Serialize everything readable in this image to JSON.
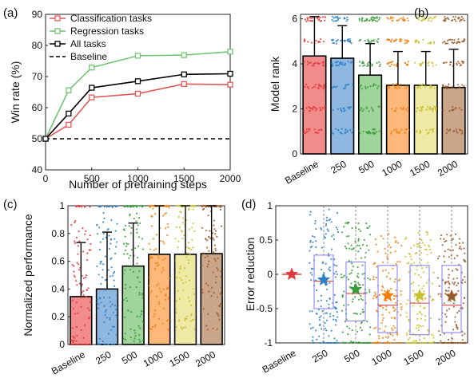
{
  "chart_data": [
    {
      "panel_label": "(a)",
      "type": "line",
      "xlabel": "Number of pretraining steps",
      "ylabel": "Win rate (%)",
      "xlim": [
        0,
        2000
      ],
      "ylim": [
        40,
        90
      ],
      "xticks": [
        0,
        500,
        1000,
        1500,
        2000
      ],
      "yticks": [
        40,
        50,
        60,
        70,
        80,
        90
      ],
      "grid": false,
      "legend_position": "top-left",
      "x": [
        0,
        250,
        500,
        1000,
        1500,
        2000
      ],
      "series": [
        {
          "name": "Classification tasks",
          "color": "#e05a5a",
          "values": [
            50,
            54.5,
            63.3,
            64.5,
            67.6,
            67.4
          ]
        },
        {
          "name": "Regression tasks",
          "color": "#74c476",
          "values": [
            50,
            65.6,
            72.9,
            76.7,
            76.9,
            78.0
          ]
        },
        {
          "name": "All tasks",
          "color": "#000000",
          "values": [
            50,
            58.1,
            66.4,
            68.5,
            70.7,
            70.9
          ]
        }
      ],
      "reference_line": {
        "name": "Baseline",
        "value": 50,
        "color": "#000000"
      }
    },
    {
      "panel_label": "(b)",
      "type": "bar",
      "xlabel": "",
      "ylabel": "Model rank",
      "ylim": [
        0,
        6.2
      ],
      "yticks": [
        0,
        2,
        4,
        6
      ],
      "categories": [
        "Baseline",
        "250",
        "500",
        "1000",
        "1500",
        "2000"
      ],
      "values": [
        4.35,
        4.25,
        3.5,
        3.05,
        3.05,
        2.95
      ],
      "errors": [
        1.75,
        1.45,
        1.4,
        1.5,
        1.5,
        1.7
      ],
      "discrete_levels": [
        1,
        2,
        3,
        4,
        5,
        6
      ],
      "colors": [
        "#f28b8b",
        "#8fb8e0",
        "#9fd49a",
        "#fdb87a",
        "#eeeaa6",
        "#c9a68a"
      ],
      "dot_colors": [
        "#e03a3a",
        "#2f7fc2",
        "#3a9a3a",
        "#f07f10",
        "#c8c030",
        "#9a5a2a"
      ]
    },
    {
      "panel_label": "(c)",
      "type": "bar",
      "xlabel": "",
      "ylabel": "Normalized performance",
      "ylim": [
        0,
        1
      ],
      "yticks": [
        0,
        0.2,
        0.4,
        0.6,
        0.8,
        1
      ],
      "categories": [
        "Baseline",
        "250",
        "500",
        "1000",
        "1500",
        "2000"
      ],
      "values": [
        0.345,
        0.4,
        0.565,
        0.65,
        0.65,
        0.655
      ],
      "errors": [
        0.39,
        0.41,
        0.31,
        0.35,
        0.35,
        0.345
      ],
      "colors": [
        "#f28b8b",
        "#8fb8e0",
        "#9fd49a",
        "#fdb87a",
        "#eeeaa6",
        "#c9a68a"
      ],
      "dot_colors": [
        "#e03a3a",
        "#2f7fc2",
        "#3a9a3a",
        "#f07f10",
        "#c8c030",
        "#9a5a2a"
      ]
    },
    {
      "panel_label": "(d)",
      "type": "box",
      "xlabel": "",
      "ylabel": "Error reduction",
      "ylim": [
        -1,
        1
      ],
      "yticks": [
        -1,
        -0.5,
        0,
        0.5,
        1
      ],
      "categories": [
        "Baseline",
        "250",
        "500",
        "1000",
        "1500",
        "2000"
      ],
      "mean": [
        0,
        -0.08,
        -0.22,
        -0.31,
        -0.31,
        -0.32
      ],
      "median": [
        0,
        -0.1,
        -0.28,
        -0.45,
        -0.42,
        -0.45
      ],
      "q1": [
        0,
        -0.5,
        -0.68,
        -0.85,
        -0.88,
        -0.85
      ],
      "q3": [
        0,
        0.28,
        0.18,
        0.13,
        0.13,
        0.13
      ],
      "whisker_low": [
        0,
        -1,
        -1,
        -1,
        -1,
        -1
      ],
      "whisker_high": [
        0,
        1,
        1,
        1,
        1,
        1
      ],
      "colors": [
        "#e03a3a",
        "#2f7fc2",
        "#3a9a3a",
        "#f07f10",
        "#c8c030",
        "#9a5a2a"
      ],
      "box_color": "#8a86f0",
      "marker": "star"
    }
  ]
}
